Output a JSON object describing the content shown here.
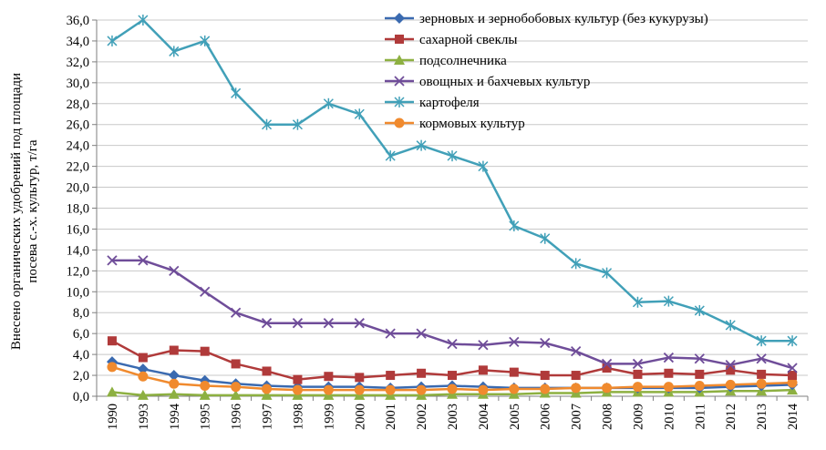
{
  "chart_data": {
    "type": "line",
    "ylabel": [
      "Внесено органических удобрений под площади",
      "посева с.-х. культур, т/га"
    ],
    "xlabel": "",
    "ylim": [
      0,
      36
    ],
    "y_ticks": [
      "0,0",
      "2,0",
      "4,0",
      "6,0",
      "8,0",
      "10,0",
      "12,0",
      "14,0",
      "16,0",
      "18,0",
      "20,0",
      "22,0",
      "24,0",
      "26,0",
      "28,0",
      "30,0",
      "32,0",
      "34,0",
      "36,0"
    ],
    "categories": [
      "1990",
      "1993",
      "1994",
      "1995",
      "1996",
      "1997",
      "1998",
      "1999",
      "2000",
      "2001",
      "2002",
      "2003",
      "2004",
      "2005",
      "2006",
      "2007",
      "2008",
      "2009",
      "2010",
      "2011",
      "2012",
      "2013",
      "2014"
    ],
    "grid": "horizontal",
    "legend_position": "top-right",
    "series": [
      {
        "name": "зерновых и зернобобовых культур (без кукурузы)",
        "color": "#3a6ab0",
        "marker": "diamond",
        "values": [
          3.3,
          2.6,
          2.0,
          1.5,
          1.2,
          1.0,
          0.9,
          0.9,
          0.9,
          0.8,
          0.9,
          1.0,
          0.9,
          0.8,
          0.8,
          0.8,
          0.8,
          0.8,
          0.8,
          0.8,
          0.9,
          1.0,
          1.1
        ]
      },
      {
        "name": "сахарной свеклы",
        "color": "#b03a3a",
        "marker": "square",
        "values": [
          5.3,
          3.7,
          4.4,
          4.3,
          3.1,
          2.4,
          1.6,
          1.9,
          1.8,
          2.0,
          2.2,
          2.0,
          2.5,
          2.3,
          2.0,
          2.0,
          2.7,
          2.1,
          2.2,
          2.1,
          2.5,
          2.1,
          2.0
        ]
      },
      {
        "name": "подсолнечника",
        "color": "#8db041",
        "marker": "triangle",
        "values": [
          0.4,
          0.1,
          0.2,
          0.1,
          0.1,
          0.1,
          0.1,
          0.1,
          0.1,
          0.1,
          0.1,
          0.2,
          0.2,
          0.2,
          0.3,
          0.3,
          0.4,
          0.4,
          0.4,
          0.4,
          0.5,
          0.5,
          0.6
        ]
      },
      {
        "name": "овощных и бахчевых культур",
        "color": "#6f4d99",
        "marker": "x",
        "values": [
          13.0,
          13.0,
          12.0,
          10.0,
          8.0,
          7.0,
          7.0,
          7.0,
          7.0,
          6.0,
          6.0,
          5.0,
          4.9,
          5.2,
          5.1,
          4.3,
          3.1,
          3.1,
          3.7,
          3.6,
          3.0,
          3.6,
          2.7
        ]
      },
      {
        "name": "картофеля",
        "color": "#41a0b8",
        "marker": "star",
        "values": [
          34.0,
          36.0,
          33.0,
          34.0,
          29.0,
          26.0,
          26.0,
          28.0,
          27.0,
          23.0,
          24.0,
          23.0,
          22.0,
          16.3,
          15.1,
          12.7,
          11.8,
          9.0,
          9.1,
          8.2,
          6.8,
          5.3,
          5.3
        ]
      },
      {
        "name": "кормовых культур",
        "color": "#f08a2e",
        "marker": "circle",
        "values": [
          2.8,
          1.9,
          1.2,
          1.0,
          0.9,
          0.7,
          0.6,
          0.6,
          0.6,
          0.6,
          0.6,
          0.7,
          0.6,
          0.7,
          0.7,
          0.8,
          0.8,
          0.9,
          0.9,
          1.0,
          1.1,
          1.2,
          1.3
        ]
      }
    ]
  }
}
